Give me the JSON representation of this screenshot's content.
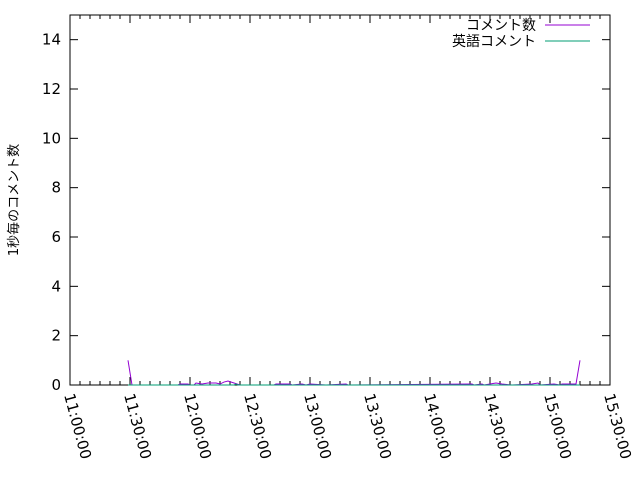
{
  "chart_data": {
    "type": "line",
    "title": "",
    "xlabel": "",
    "ylabel": "1秒毎のコメント数",
    "xlim": [
      "11:00:00",
      "15:30:00"
    ],
    "ylim": [
      0,
      15
    ],
    "x_ticks": [
      "11:00:00",
      "11:30:00",
      "12:00:00",
      "12:30:00",
      "13:00:00",
      "13:30:00",
      "14:00:00",
      "14:30:00",
      "15:00:00",
      "15:30:00"
    ],
    "y_ticks": [
      0,
      2,
      4,
      6,
      8,
      10,
      12,
      14
    ],
    "grid": false,
    "legend_position": "top-right",
    "series": [
      {
        "name": "コメント数",
        "color": "#9400d3",
        "points": [
          [
            "11:29:00",
            1
          ],
          [
            "11:31:00",
            0
          ],
          [
            "11:54:00",
            0
          ],
          [
            "11:55:00",
            0.04
          ],
          [
            "11:59:00",
            0.04
          ],
          [
            "12:00:00",
            0
          ],
          [
            "12:02:00",
            0
          ],
          [
            "12:03:00",
            0.08
          ],
          [
            "12:06:00",
            0.04
          ],
          [
            "12:09:00",
            0.08
          ],
          [
            "12:13:00",
            0.08
          ],
          [
            "12:15:00",
            0.04
          ],
          [
            "12:17:00",
            0.12
          ],
          [
            "12:19:00",
            0.16
          ],
          [
            "12:22:00",
            0.08
          ],
          [
            "12:25:00",
            0
          ],
          [
            "12:42:00",
            0
          ],
          [
            "12:43:00",
            0.04
          ],
          [
            "12:50:00",
            0.04
          ],
          [
            "12:51:00",
            0
          ],
          [
            "12:56:00",
            0.04
          ],
          [
            "12:58:00",
            0
          ],
          [
            "13:00:00",
            0.04
          ],
          [
            "13:08:00",
            0
          ],
          [
            "13:18:00",
            0.04
          ],
          [
            "13:19:00",
            0
          ],
          [
            "14:21:00",
            0.04
          ],
          [
            "14:22:00",
            0
          ],
          [
            "14:26:00",
            0.04
          ],
          [
            "14:27:00",
            0
          ],
          [
            "14:30:00",
            0.04
          ],
          [
            "14:33:00",
            0.08
          ],
          [
            "14:36:00",
            0.04
          ],
          [
            "14:41:00",
            0
          ],
          [
            "14:51:00",
            0.04
          ],
          [
            "14:54:00",
            0.08
          ],
          [
            "14:55:00",
            0
          ],
          [
            "15:02:00",
            0.04
          ],
          [
            "15:05:00",
            0
          ],
          [
            "15:06:00",
            0.04
          ],
          [
            "15:13:00",
            0.04
          ],
          [
            "15:15:00",
            1
          ]
        ]
      },
      {
        "name": "英語コメント",
        "color": "#009e73",
        "points": [
          [
            "11:29:00",
            0
          ],
          [
            "12:22:00",
            0
          ],
          [
            "12:23:00",
            0.04
          ],
          [
            "12:24:00",
            0
          ],
          [
            "15:15:00",
            0
          ]
        ]
      }
    ]
  }
}
